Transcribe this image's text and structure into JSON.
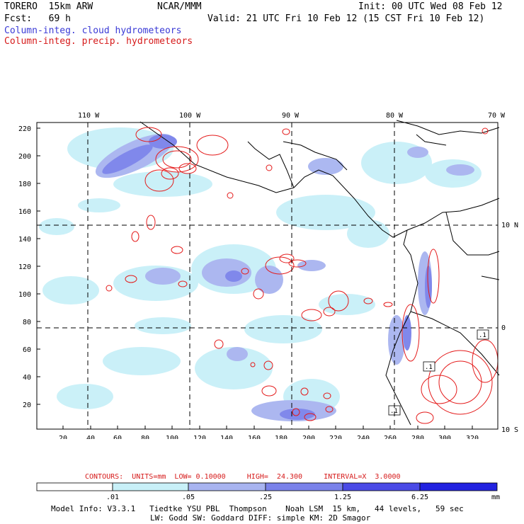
{
  "header": {
    "left1": "TORERO  15km ARW",
    "left2": "Fcst:   69 h",
    "center1": "NCAR/MMM",
    "init": "Init: 00 UTC Wed 08 Feb 12",
    "valid": "Valid: 21 UTC Fri 10 Feb 12 (15 CST Fri 10 Feb 12)"
  },
  "legend": {
    "cloud": "Column-integ. cloud hydrometeors",
    "precip": "Column-integ. precip. hydrometeors"
  },
  "map": {
    "top_lon_labels": [
      "110 W",
      "100 W",
      "90 W",
      "80 W",
      "70 W"
    ],
    "right_lat_labels": [
      "10 N",
      "0",
      "10 S"
    ],
    "y_ticks": [
      "220",
      "200",
      "180",
      "160",
      "140",
      "120",
      "100",
      "80",
      "60",
      "40",
      "20"
    ],
    "x_ticks": [
      "20",
      "40",
      "60",
      "80",
      "100",
      "120",
      "140",
      "160",
      "180",
      "200",
      "220",
      "240",
      "260",
      "280",
      "300",
      "320"
    ],
    "contour_box_labels": [
      ".1",
      ".1",
      ".1"
    ],
    "colors": {
      "light": "#c8f0f8",
      "mid": "#a8b4f0",
      "strong": "#7a82ea",
      "deep": "#4a4ae6",
      "precip": "#e41a1a",
      "land": "#000000"
    }
  },
  "contour_info": "CONTOURS:  UNITS=mm  LOW= 0.10000     HIGH=  24.300     INTERVAL=X  3.0000",
  "colorbar": {
    "labels": [
      ".01",
      ".05",
      ".25",
      "1.25",
      "6.25"
    ],
    "units": "mm",
    "colors": [
      "#ffffff",
      "#c8f0f8",
      "#a8b4f0",
      "#7a82ea",
      "#4a4ae6",
      "#2222e0"
    ]
  },
  "model_info": {
    "line1": "Model Info: V3.3.1   Tiedtke YSU PBL  Thompson    Noah LSM  15 km,   44 levels,   59 sec",
    "line2": "LW: Godd SW: Goddard DIFF: simple KM: 2D Smagor"
  }
}
